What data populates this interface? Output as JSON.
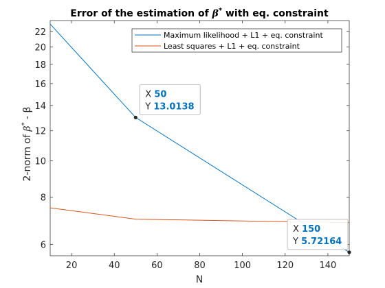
{
  "chart_data": {
    "type": "line",
    "title_prefix": "Error of the estimation of ",
    "title_symbol": "β",
    "title_superscript": "*",
    "title_suffix": " with eq. constraint",
    "xlabel": "N",
    "ylabel_prefix": "2-norm of ",
    "ylabel_symbol": "β",
    "ylabel_superscript": "*",
    "ylabel_suffix": " - β",
    "y_scale": "log",
    "xlim": [
      10,
      150
    ],
    "ylim": [
      5.6,
      23.5
    ],
    "x_ticks": [
      "20",
      "40",
      "60",
      "80",
      "100",
      "120",
      "140"
    ],
    "x_tick_values": [
      20,
      40,
      60,
      80,
      100,
      120,
      140
    ],
    "y_ticks": [
      "6",
      "8",
      "10",
      "12",
      "14",
      "16",
      "18",
      "20",
      "22"
    ],
    "y_tick_values": [
      6,
      8,
      10,
      12,
      14,
      16,
      18,
      20,
      22
    ],
    "legend_position": "top-right",
    "series": [
      {
        "name": "Maximum likelihood + L1 + eq. constraint",
        "color": "#0072bd",
        "x": [
          10,
          50,
          150
        ],
        "y": [
          23.0,
          13.0138,
          5.72164
        ]
      },
      {
        "name": "Least squares + L1 + eq. constraint",
        "color": "#d95319",
        "x": [
          10,
          50,
          150
        ],
        "y": [
          7.5,
          7.0,
          6.85
        ]
      }
    ],
    "datatips": [
      {
        "x_label": "X",
        "x_value": "50",
        "y_label": "Y",
        "y_value": "13.0138",
        "x": 50,
        "y": 13.0138
      },
      {
        "x_label": "X",
        "x_value": "150",
        "y_label": "Y",
        "y_value": "5.72164",
        "x": 150,
        "y": 5.72164
      }
    ]
  }
}
